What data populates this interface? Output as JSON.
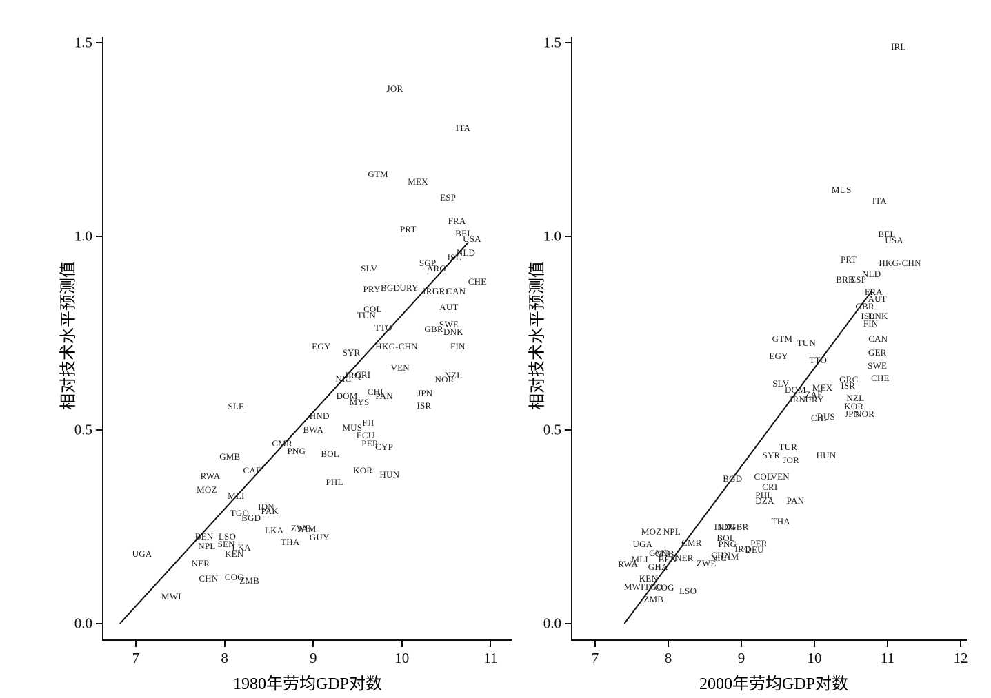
{
  "figure": {
    "background": "#ffffff",
    "ink_color": "#111111",
    "points_format": "[label, x, y]"
  },
  "chart_data": [
    {
      "id": "left-panel",
      "type": "scatter",
      "title": "",
      "xlabel": "1980年劳均GDP对数",
      "ylabel": "相对技术水平预测值",
      "xticks": [
        7,
        8,
        9,
        10,
        11
      ],
      "yticks": [
        0.0,
        0.5,
        1.0,
        1.5
      ],
      "ytick_labels": [
        "0.0",
        "0.5",
        "1.0",
        "1.5"
      ],
      "xlim": [
        6.63,
        11.23
      ],
      "ylim": [
        -0.07,
        1.56
      ],
      "grid": false,
      "legend": null,
      "marker": "text-label",
      "trend_line": {
        "x1": 6.82,
        "y1": 0.0,
        "x2": 10.75,
        "y2": 0.985
      },
      "points": [
        [
          "UGA",
          7.07,
          0.18
        ],
        [
          "MWI",
          7.4,
          0.07
        ],
        [
          "NER",
          7.73,
          0.155
        ],
        [
          "CHN",
          7.82,
          0.115
        ],
        [
          "COG",
          8.11,
          0.12
        ],
        [
          "ZMB",
          8.28,
          0.11
        ],
        [
          "BEN",
          7.77,
          0.225
        ],
        [
          "NPL",
          7.8,
          0.2
        ],
        [
          "LSO",
          8.03,
          0.225
        ],
        [
          "SEN",
          8.02,
          0.205
        ],
        [
          "LKA",
          8.19,
          0.196
        ],
        [
          "KEN",
          8.11,
          0.179
        ],
        [
          "LKA",
          8.56,
          0.24
        ],
        [
          "ZWE",
          8.86,
          0.245
        ],
        [
          "JAM",
          8.93,
          0.243
        ],
        [
          "GUY",
          9.07,
          0.223
        ],
        [
          "THA",
          8.74,
          0.21
        ],
        [
          "TGO",
          8.17,
          0.285
        ],
        [
          "BGD",
          8.3,
          0.273
        ],
        [
          "MLI",
          8.13,
          0.33
        ],
        [
          "IDN",
          8.47,
          0.3
        ],
        [
          "PAK",
          8.51,
          0.29
        ],
        [
          "MOZ",
          7.8,
          0.345
        ],
        [
          "RWA",
          7.84,
          0.38
        ],
        [
          "CAF",
          8.31,
          0.395
        ],
        [
          "GMB",
          8.06,
          0.43
        ],
        [
          "SLE",
          8.13,
          0.56
        ],
        [
          "CMR",
          8.65,
          0.465
        ],
        [
          "PNG",
          8.81,
          0.445
        ],
        [
          "BOL",
          9.19,
          0.437
        ],
        [
          "PHL",
          9.24,
          0.365
        ],
        [
          "KOR",
          9.56,
          0.395
        ],
        [
          "HUN",
          9.86,
          0.385
        ],
        [
          "BWA",
          9.0,
          0.5
        ],
        [
          "HND",
          9.07,
          0.535
        ],
        [
          "MUS",
          9.44,
          0.505
        ],
        [
          "FJI",
          9.62,
          0.517
        ],
        [
          "ECU",
          9.59,
          0.485
        ],
        [
          "PER",
          9.64,
          0.465
        ],
        [
          "CYP",
          9.8,
          0.455
        ],
        [
          "MYS",
          9.52,
          0.572
        ],
        [
          "DOM",
          9.38,
          0.588
        ],
        [
          "CHI",
          9.7,
          0.598
        ],
        [
          "PAN",
          9.8,
          0.588
        ],
        [
          "JPN",
          10.26,
          0.595
        ],
        [
          "ISR",
          10.25,
          0.563
        ],
        [
          "NIC",
          9.34,
          0.632
        ],
        [
          "IRQ",
          9.45,
          0.641
        ],
        [
          "CRI",
          9.56,
          0.643
        ],
        [
          "VEN",
          9.98,
          0.66
        ],
        [
          "NOR",
          10.48,
          0.63
        ],
        [
          "NZL",
          10.58,
          0.64
        ],
        [
          "EGY",
          9.09,
          0.715
        ],
        [
          "SYR",
          9.43,
          0.7
        ],
        [
          "HKG-CHN",
          9.94,
          0.715
        ],
        [
          "FIN",
          10.63,
          0.715
        ],
        [
          "TTO",
          9.79,
          0.763
        ],
        [
          "GBR",
          10.36,
          0.76
        ],
        [
          "SWE",
          10.53,
          0.772
        ],
        [
          "DNK",
          10.58,
          0.752
        ],
        [
          "TUN",
          9.6,
          0.796
        ],
        [
          "COL",
          9.67,
          0.812
        ],
        [
          "AUT",
          10.53,
          0.817
        ],
        [
          "PRY",
          9.66,
          0.863
        ],
        [
          "BGD",
          9.87,
          0.866
        ],
        [
          "URY",
          10.08,
          0.866
        ],
        [
          "IRL",
          10.32,
          0.857
        ],
        [
          "GRC",
          10.45,
          0.857
        ],
        [
          "CAN",
          10.61,
          0.857
        ],
        [
          "SLV",
          9.63,
          0.917
        ],
        [
          "SGP",
          10.29,
          0.93
        ],
        [
          "ARG",
          10.39,
          0.916
        ],
        [
          "CHE",
          10.85,
          0.883
        ],
        [
          "ISL",
          10.59,
          0.944
        ],
        [
          "NLD",
          10.72,
          0.958
        ],
        [
          "PRT",
          10.07,
          1.017
        ],
        [
          "BEL",
          10.7,
          1.007
        ],
        [
          "USA",
          10.79,
          0.993
        ],
        [
          "FRA",
          10.62,
          1.04
        ],
        [
          "ESP",
          10.52,
          1.1
        ],
        [
          "MEX",
          10.18,
          1.14
        ],
        [
          "GTM",
          9.73,
          1.16
        ],
        [
          "ITA",
          10.69,
          1.28
        ],
        [
          "JOR",
          9.92,
          1.38
        ]
      ]
    },
    {
      "id": "right-panel",
      "type": "scatter",
      "title": "",
      "xlabel": "2000年劳均GDP对数",
      "ylabel": "相对技术水平预测值",
      "xticks": [
        7,
        8,
        9,
        10,
        11,
        12
      ],
      "yticks": [
        0.0,
        0.5,
        1.0,
        1.5
      ],
      "ytick_labels": [
        "0.0",
        "0.5",
        "1.0",
        "1.5"
      ],
      "xlim": [
        6.69,
        12.1
      ],
      "ylim": [
        -0.07,
        1.56
      ],
      "grid": false,
      "legend": null,
      "marker": "text-label",
      "trend_line": {
        "x1": 7.4,
        "y1": 0.0,
        "x2": 10.78,
        "y2": 0.858
      },
      "points": [
        [
          "IRL",
          11.15,
          1.49
        ],
        [
          "MUS",
          10.37,
          1.12
        ],
        [
          "ITA",
          10.89,
          1.09
        ],
        [
          "BEL",
          10.99,
          1.005
        ],
        [
          "USA",
          11.09,
          0.99
        ],
        [
          "PRT",
          10.47,
          0.94
        ],
        [
          "HKG-CHN",
          11.17,
          0.93
        ],
        [
          "BRB",
          10.42,
          0.888
        ],
        [
          "ESP",
          10.6,
          0.888
        ],
        [
          "NLD",
          10.78,
          0.903
        ],
        [
          "FRA",
          10.81,
          0.855
        ],
        [
          "AUT",
          10.86,
          0.838
        ],
        [
          "GBR",
          10.69,
          0.818
        ],
        [
          "ISL",
          10.73,
          0.793
        ],
        [
          "DNK",
          10.87,
          0.793
        ],
        [
          "FIN",
          10.77,
          0.774
        ],
        [
          "CAN",
          10.87,
          0.735
        ],
        [
          "GTM",
          9.56,
          0.735
        ],
        [
          "TUN",
          9.89,
          0.724
        ],
        [
          "GER",
          10.86,
          0.7
        ],
        [
          "EGY",
          9.51,
          0.69
        ],
        [
          "TTO",
          10.05,
          0.68
        ],
        [
          "SWE",
          10.86,
          0.665
        ],
        [
          "CHE",
          10.9,
          0.633
        ],
        [
          "SLV",
          9.54,
          0.62
        ],
        [
          "GRC",
          10.47,
          0.63
        ],
        [
          "ISR",
          10.46,
          0.614
        ],
        [
          "DOM",
          9.74,
          0.603
        ],
        [
          "MEX",
          10.11,
          0.608
        ],
        [
          "ZAF",
          9.99,
          0.591
        ],
        [
          "IRN",
          9.77,
          0.578
        ],
        [
          "URY",
          10.0,
          0.578
        ],
        [
          "NZL",
          10.56,
          0.582
        ],
        [
          "KOR",
          10.54,
          0.56
        ],
        [
          "JPN",
          10.52,
          0.541
        ],
        [
          "NOR",
          10.69,
          0.541
        ],
        [
          "CHI",
          10.06,
          0.53
        ],
        [
          "RUS",
          10.16,
          0.534
        ],
        [
          "TUR",
          9.64,
          0.455
        ],
        [
          "SYR",
          9.41,
          0.434
        ],
        [
          "JOR",
          9.68,
          0.422
        ],
        [
          "HUN",
          10.16,
          0.434
        ],
        [
          "BGD",
          8.88,
          0.374
        ],
        [
          "COL",
          9.3,
          0.379
        ],
        [
          "VEN",
          9.53,
          0.379
        ],
        [
          "CRI",
          9.39,
          0.352
        ],
        [
          "PHL",
          9.31,
          0.331
        ],
        [
          "DZA",
          9.32,
          0.317
        ],
        [
          "PAN",
          9.74,
          0.317
        ],
        [
          "THA",
          9.54,
          0.263
        ],
        [
          "IND",
          8.74,
          0.25
        ],
        [
          "IDN",
          8.8,
          0.249
        ],
        [
          "GBR",
          8.97,
          0.249
        ],
        [
          "MOZ",
          7.77,
          0.237
        ],
        [
          "NPL",
          8.05,
          0.237
        ],
        [
          "UGA",
          7.65,
          0.205
        ],
        [
          "CMR",
          8.32,
          0.208
        ],
        [
          "BOL",
          8.79,
          0.22
        ],
        [
          "PNG",
          8.81,
          0.205
        ],
        [
          "PER",
          9.24,
          0.206
        ],
        [
          "IRQ",
          9.02,
          0.192
        ],
        [
          "DEU",
          9.18,
          0.19
        ],
        [
          "CHN",
          8.72,
          0.176
        ],
        [
          "GMB",
          7.88,
          0.182
        ],
        [
          "GNB",
          7.95,
          0.18
        ],
        [
          "BEN",
          7.99,
          0.165
        ],
        [
          "NER",
          8.22,
          0.169
        ],
        [
          "MLI",
          7.61,
          0.165
        ],
        [
          "NIC",
          8.69,
          0.169
        ],
        [
          "JAM",
          8.84,
          0.172
        ],
        [
          "ZWE",
          8.52,
          0.155
        ],
        [
          "RWA",
          7.45,
          0.153
        ],
        [
          "GHA",
          7.86,
          0.146
        ],
        [
          "KEN",
          7.73,
          0.116
        ],
        [
          "MWI",
          7.53,
          0.094
        ],
        [
          "TGO",
          7.8,
          0.094
        ],
        [
          "COG",
          7.95,
          0.092
        ],
        [
          "LSO",
          8.27,
          0.084
        ],
        [
          "ZMB",
          7.8,
          0.062
        ]
      ]
    }
  ]
}
